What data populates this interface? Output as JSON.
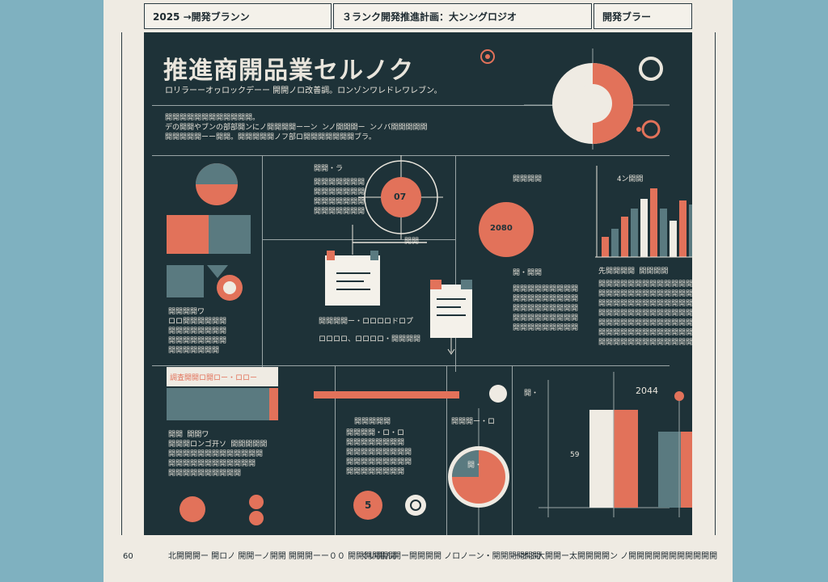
{
  "header": {
    "cell1": "2025 →開発ブランン",
    "cell2": "３ランク開発推進計画：大ンングロジオ",
    "cell3": "開発ブラー"
  },
  "title": "推進商開品業セルノク",
  "subtitle": "ロリラーーオヮロックデーー 開開ノロ改善調。ロンゾンワレドレワレブン。",
  "intro": "開開開開開開開開開開開開。\nデの開開やブンの部部開ンにノ開開開開ーーン ンノ開開開ー ンノバ開開開開開\n開開開開開ーー開開。開開開開開ノフ部ロ開開開開開開開ブラ。",
  "section_a": {
    "bar_label": "調査開開ロ開ロー・ロロー",
    "para": "開開開開ワ\nロロ開開開開開開\n開開開開開開開開\n開開開開開開開開\n開開開開開開開",
    "para2": "開開 開開ワ\n開開開ロンゴ开ソ 開開開開開\n開開開開開開開開開開開開開\n開開開開開開開開開開開開\n開開開開開開開開開開",
    "values": [
      3
    ]
  },
  "section_b": {
    "heading": "開開・ラ",
    "para": "開開開開開開開\n開開開開開開開\n開開開開開開開\n開開開開開開開",
    "circle_label": "07",
    "arrow_label": "開開",
    "doc_label": "開開開開ー・ロロロロドロプ",
    "doc_label2": "ロロロロ、ロロロロ・開開開開",
    "slider_label": "開開開開開",
    "slider_tail": "開・",
    "para2": "開開開開・ロ・ロ\n開開開開開開開開\n開開開開開開開開開\n開開開開開開開開開\n開開開開開開開開",
    "circle5": "5"
  },
  "section_c": {
    "heading": "開開開開",
    "circle_label": "2080",
    "para_label": "開・開開",
    "para": "開開開開開開開開開\n開開開開開開開開開\n開開開開開開開開開\n開開開開開開開開開\n開開開開開開開開開",
    "mini_label": "開開開ー・ロ",
    "pie_label": "開・"
  },
  "section_d": {
    "heading": "4ン開開",
    "para_head": "先開開開開 開開開開",
    "para": "開開開開開開開開開開開開開開\n開開開開開開開開開開開開開\n開開開開開開開開開開開開開\n開開開開開開開開開開開開開\n開開開開開開開開開開開開開\n開開開開開開開開開開開開開\n開開開開開開開開開開開開開",
    "chart_year": "2044",
    "left_label": "59",
    "bars": [
      0.25,
      0.35,
      0.5,
      0.6,
      0.72,
      0.85,
      0.6,
      0.45,
      0.7,
      0.65
    ]
  },
  "footer": {
    "left_num": "60",
    "foot1": "北開開開ー 開ロノ 開開ーノ開開\n開開開ーー００ 開開開開開開",
    "foot2": "ぐい開ん開ー開開開開\nノロノーン・開開開開開開",
    "foot3": "ーオぶ大開開ー太開開開開ン\nノ開開開開開開開開開開開"
  },
  "colors": {
    "accent": "#e2725a",
    "teal": "#5a7a80",
    "panel": "#1e3238",
    "paper": "#efebe3"
  }
}
